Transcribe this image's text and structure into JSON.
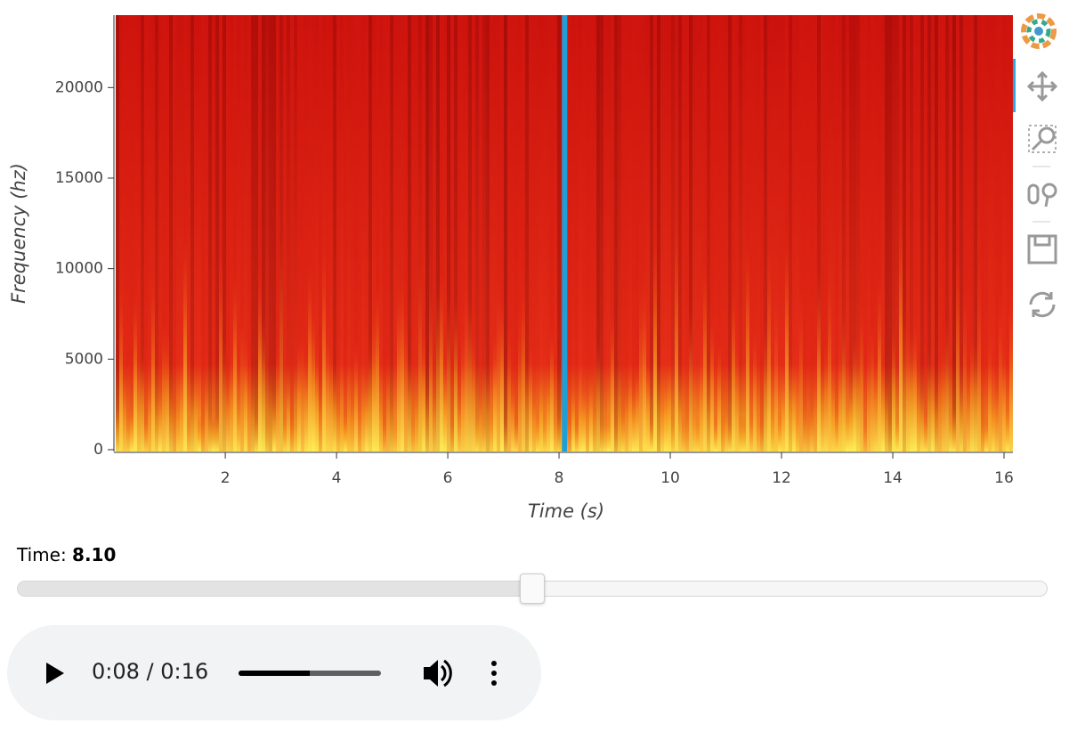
{
  "chart_data": {
    "type": "image",
    "x_label": "Time (s)",
    "y_label": "Frequency (hz)",
    "xlim": [
      0.03,
      16.16
    ],
    "ylim": [
      -100,
      24000
    ],
    "xticks": [
      2,
      4,
      6,
      8,
      10,
      12,
      14,
      16
    ],
    "yticks": [
      0,
      5000,
      10000,
      15000,
      20000
    ],
    "cursor_x": 8.1,
    "cursor_color": "#1f9fd6"
  },
  "slider": {
    "title": "Time:",
    "value": {
      "value": 8.1,
      "label": "8.10"
    },
    "start": 0,
    "end": 16.2
  },
  "audio": {
    "time_text": "0:08 / 0:16",
    "position": 8.1,
    "length": 16.2
  }
}
